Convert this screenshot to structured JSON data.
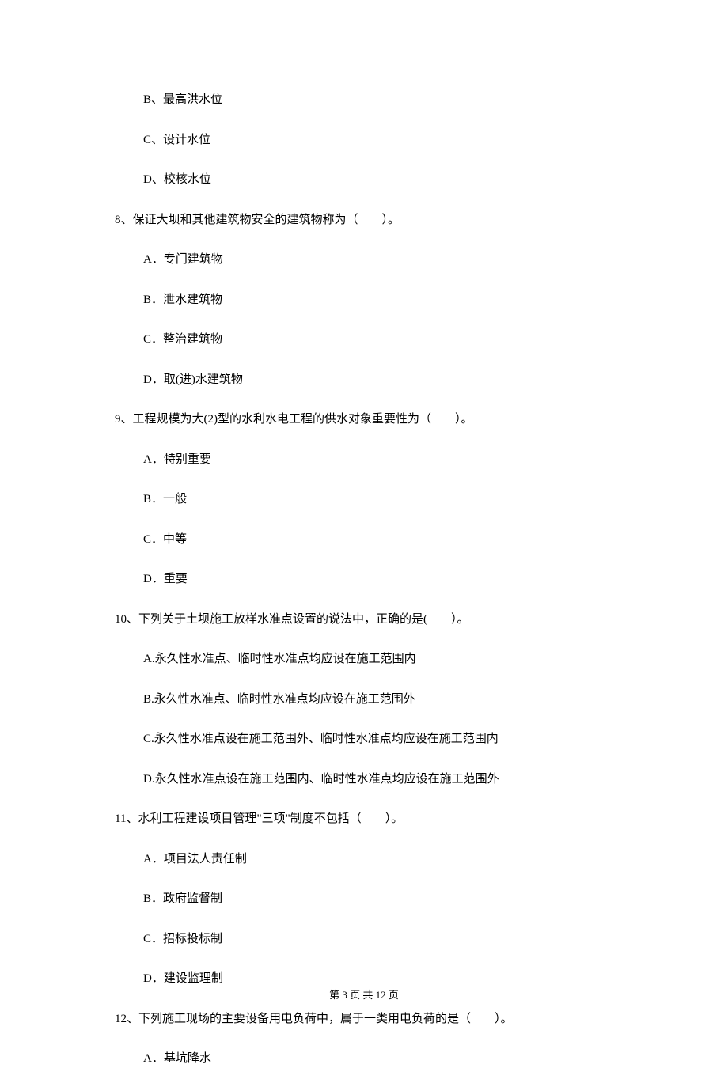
{
  "preOptions": [
    "B、最高洪水位",
    "C、设计水位",
    "D、校核水位"
  ],
  "questions": [
    {
      "stem": "8、保证大坝和其他建筑物安全的建筑物称为（　　）。",
      "options": [
        "A．专门建筑物",
        "B．泄水建筑物",
        "C．整治建筑物",
        "D．取(进)水建筑物"
      ]
    },
    {
      "stem": "9、工程规模为大(2)型的水利水电工程的供水对象重要性为（　　）。",
      "options": [
        "A．特别重要",
        "B．一般",
        "C．中等",
        "D．重要"
      ]
    },
    {
      "stem": "10、下列关于土坝施工放样水准点设置的说法中，正确的是(　　）。",
      "options": [
        "A.永久性水准点、临时性水准点均应设在施工范围内",
        "B.永久性水准点、临时性水准点均应设在施工范围外",
        "C.永久性水准点设在施工范围外、临时性水准点均应设在施工范围内",
        "D.永久性水准点设在施工范围内、临时性水准点均应设在施工范围外"
      ]
    },
    {
      "stem": "11、水利工程建设项目管理\"三项\"制度不包括（　　）。",
      "options": [
        "A．项目法人责任制",
        "B．政府监督制",
        "C．招标投标制",
        "D．建设监理制"
      ]
    },
    {
      "stem": "12、下列施工现场的主要设备用电负荷中，属于一类用电负荷的是（　　）。",
      "options": [
        "A．基坑降水"
      ]
    }
  ],
  "footer": "第 3 页 共 12 页"
}
